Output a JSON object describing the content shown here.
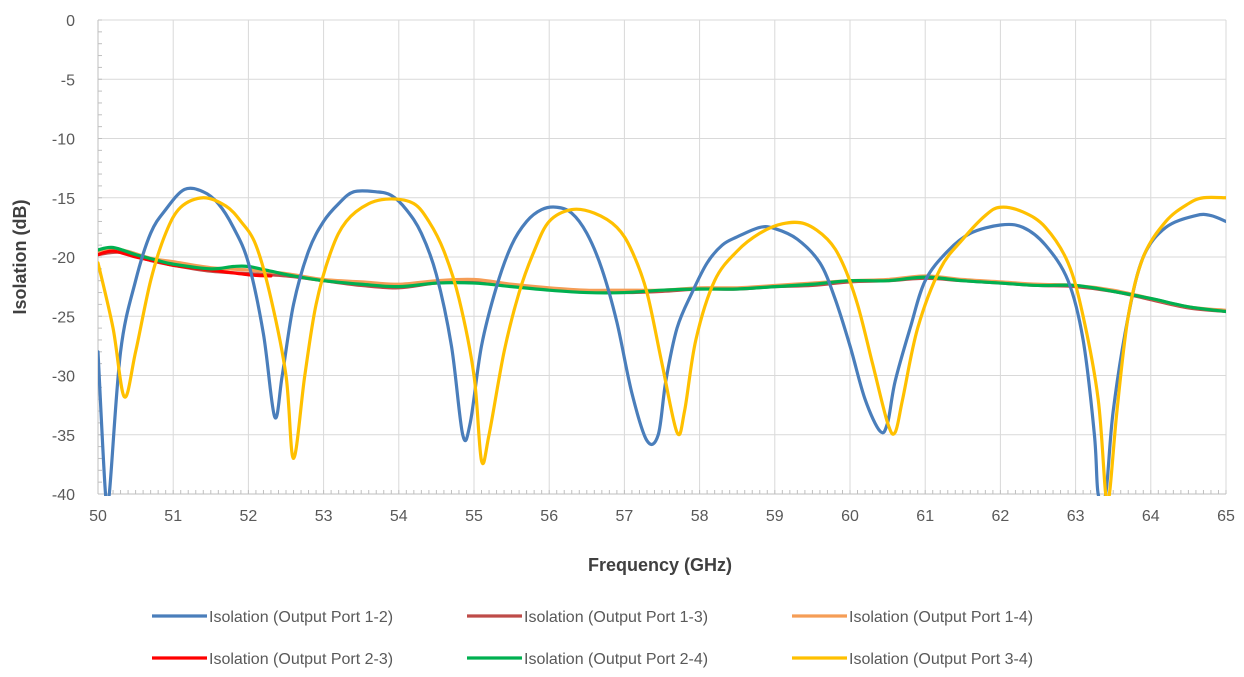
{
  "chart_data": {
    "type": "line",
    "xlabel": "Frequency (GHz)",
    "ylabel": "Isolation (dB)",
    "xlim": [
      50,
      65
    ],
    "ylim": [
      -40,
      0
    ],
    "xticks": [
      50,
      51,
      52,
      53,
      54,
      55,
      56,
      57,
      58,
      59,
      60,
      61,
      62,
      63,
      64,
      65
    ],
    "yticks": [
      0,
      -5,
      -10,
      -15,
      -20,
      -25,
      -30,
      -35,
      -40
    ],
    "grid": true,
    "legend_position": "bottom",
    "series": [
      {
        "name": "Isolation (Output Port 1-2)",
        "color": "#4a7ebb",
        "x": [
          50.0,
          50.1,
          50.15,
          50.3,
          50.5,
          50.7,
          50.9,
          51.15,
          51.4,
          51.6,
          51.8,
          52.0,
          52.2,
          52.35,
          52.45,
          52.6,
          52.8,
          53.0,
          53.2,
          53.4,
          53.7,
          53.9,
          54.1,
          54.3,
          54.5,
          54.7,
          54.85,
          54.95,
          55.1,
          55.3,
          55.5,
          55.7,
          55.9,
          56.1,
          56.3,
          56.5,
          56.7,
          56.9,
          57.1,
          57.3,
          57.45,
          57.55,
          57.7,
          57.9,
          58.1,
          58.3,
          58.5,
          58.8,
          59.0,
          59.3,
          59.6,
          59.8,
          60.0,
          60.2,
          60.4,
          60.5,
          60.6,
          60.8,
          61.0,
          61.3,
          61.6,
          62.0,
          62.3,
          62.6,
          62.9,
          63.1,
          63.25,
          63.3,
          63.4,
          63.5,
          63.7,
          63.9,
          64.2,
          64.6,
          64.8,
          65.0
        ],
        "y": [
          -28,
          -40,
          -40,
          -28,
          -22,
          -18,
          -16,
          -14.3,
          -14.5,
          -15.5,
          -17.5,
          -20.5,
          -26.5,
          -33.5,
          -30,
          -24,
          -19.5,
          -17,
          -15.5,
          -14.5,
          -14.5,
          -14.8,
          -16,
          -18,
          -21.5,
          -27.5,
          -35,
          -34,
          -27.5,
          -22.5,
          -19,
          -17,
          -16,
          -15.8,
          -16.3,
          -18,
          -21,
          -25.5,
          -31.5,
          -35.5,
          -35,
          -30.5,
          -26,
          -23,
          -20.5,
          -19,
          -18.3,
          -17.5,
          -17.6,
          -18.5,
          -20.5,
          -23.5,
          -27.5,
          -32,
          -34.7,
          -34,
          -30.5,
          -26,
          -22,
          -19.5,
          -18,
          -17.3,
          -17.5,
          -19,
          -22,
          -27,
          -35,
          -40,
          -40,
          -33,
          -25,
          -20,
          -17.5,
          -16.5,
          -16.5,
          -17
        ]
      },
      {
        "name": "Isolation (Output Port 1-3)",
        "color": "#be4b48",
        "x": [
          50,
          50.3,
          50.7,
          51,
          51.5,
          52,
          52.5,
          53,
          53.5,
          54,
          54.5,
          55,
          55.5,
          56,
          56.5,
          57,
          57.5,
          58,
          58.5,
          59,
          59.5,
          60,
          60.5,
          61,
          61.5,
          62,
          62.5,
          63,
          63.5,
          64,
          64.5,
          65
        ],
        "y": [
          -19.8,
          -19.6,
          -20.3,
          -20.7,
          -21.2,
          -21.4,
          -21.6,
          -22,
          -22.4,
          -22.6,
          -22.2,
          -22.1,
          -22.4,
          -22.7,
          -22.9,
          -23,
          -22.9,
          -22.7,
          -22.7,
          -22.5,
          -22.4,
          -22.1,
          -22,
          -21.8,
          -22,
          -22.2,
          -22.4,
          -22.5,
          -22.9,
          -23.6,
          -24.3,
          -24.6
        ]
      },
      {
        "name": "Isolation (Output Port 1-4)",
        "color": "#f59d56",
        "x": [
          50,
          50.3,
          50.7,
          51,
          51.5,
          52,
          52.5,
          53,
          53.5,
          54,
          54.5,
          55,
          55.5,
          56,
          56.5,
          57,
          57.5,
          58,
          58.5,
          59,
          59.5,
          60,
          60.5,
          61,
          61.5,
          62,
          62.5,
          63,
          63.5,
          64,
          64.5,
          65
        ],
        "y": [
          -19.6,
          -19.4,
          -20.1,
          -20.4,
          -20.9,
          -21.1,
          -21.4,
          -21.9,
          -22.1,
          -22.3,
          -22.0,
          -21.9,
          -22.3,
          -22.6,
          -22.8,
          -22.8,
          -22.8,
          -22.6,
          -22.6,
          -22.4,
          -22.2,
          -22.0,
          -21.9,
          -21.6,
          -21.9,
          -22.1,
          -22.3,
          -22.4,
          -22.8,
          -23.5,
          -24.2,
          -24.5
        ]
      },
      {
        "name": "Isolation (Output Port 2-3)",
        "color": "#ff0000",
        "x": [
          50,
          50.2,
          50.5,
          50.8,
          51,
          51.5,
          52,
          52.3
        ],
        "y": [
          -19.8,
          -19.5,
          -20,
          -20.4,
          -20.7,
          -21.1,
          -21.5,
          -21.6
        ]
      },
      {
        "name": "Isolation (Output Port 2-4)",
        "color": "#00b050",
        "x": [
          50,
          50.2,
          50.5,
          50.8,
          51,
          51.5,
          51.8,
          52.0,
          52.3,
          52.6,
          53,
          53.5,
          54,
          54.5,
          55,
          55.5,
          56,
          56.5,
          57,
          57.5,
          58,
          58.5,
          59,
          59.5,
          60,
          60.5,
          61,
          61.5,
          62,
          62.5,
          63,
          63.5,
          64,
          64.5,
          65
        ],
        "y": [
          -19.4,
          -19.2,
          -19.8,
          -20.3,
          -20.6,
          -21.0,
          -20.8,
          -20.8,
          -21.2,
          -21.6,
          -22.0,
          -22.3,
          -22.5,
          -22.2,
          -22.2,
          -22.5,
          -22.8,
          -23.0,
          -23.0,
          -22.8,
          -22.7,
          -22.7,
          -22.5,
          -22.3,
          -22.0,
          -22.0,
          -21.7,
          -22.0,
          -22.2,
          -22.4,
          -22.4,
          -22.9,
          -23.5,
          -24.2,
          -24.6
        ]
      },
      {
        "name": "Isolation (Output Port 3-4)",
        "color": "#ffc000",
        "x": [
          50.0,
          50.2,
          50.35,
          50.5,
          50.7,
          50.9,
          51.1,
          51.4,
          51.7,
          51.9,
          52.1,
          52.3,
          52.5,
          52.6,
          52.75,
          52.9,
          53.1,
          53.3,
          53.6,
          53.9,
          54.2,
          54.4,
          54.6,
          54.8,
          55.0,
          55.1,
          55.2,
          55.4,
          55.6,
          55.8,
          56.0,
          56.3,
          56.6,
          56.9,
          57.1,
          57.3,
          57.5,
          57.7,
          57.8,
          57.95,
          58.2,
          58.5,
          58.8,
          59.1,
          59.4,
          59.7,
          59.9,
          60.1,
          60.3,
          60.5,
          60.6,
          60.7,
          60.9,
          61.2,
          61.5,
          61.8,
          62.0,
          62.3,
          62.6,
          62.9,
          63.1,
          63.3,
          63.4,
          63.45,
          63.55,
          63.7,
          63.9,
          64.2,
          64.5,
          64.7,
          65.0
        ],
        "y": [
          -20.5,
          -26,
          -31.8,
          -28,
          -22,
          -18,
          -15.8,
          -15,
          -15.7,
          -17,
          -19,
          -23.5,
          -30,
          -37,
          -30,
          -24,
          -19.5,
          -17,
          -15.5,
          -15.1,
          -15.5,
          -17,
          -19.5,
          -23.5,
          -30,
          -37.2,
          -35,
          -28,
          -23,
          -19.5,
          -17,
          -16,
          -16.3,
          -17.5,
          -19.5,
          -23,
          -29,
          -34.8,
          -33,
          -27,
          -22,
          -19.5,
          -18,
          -17.2,
          -17.2,
          -18.5,
          -20.5,
          -24,
          -29,
          -34,
          -34.8,
          -32,
          -26,
          -21,
          -18.5,
          -16.5,
          -15.8,
          -16.2,
          -17.5,
          -20.5,
          -25,
          -32,
          -40,
          -40,
          -33,
          -25,
          -20,
          -17,
          -15.5,
          -15,
          -15
        ]
      }
    ]
  }
}
